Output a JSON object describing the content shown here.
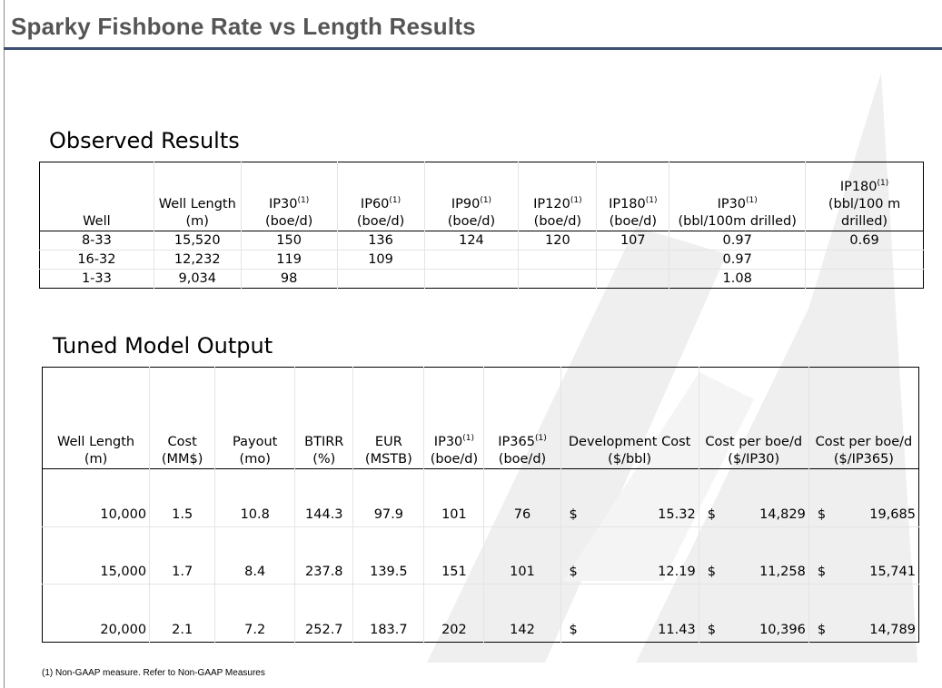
{
  "title": "Sparky Fishbone Rate vs Length Results",
  "colors": {
    "title": "#555555",
    "rule": "#3e4f72",
    "watermark": "#ececec"
  },
  "observed": {
    "heading": "Observed Results",
    "headers": [
      {
        "main": "Well",
        "sup": "",
        "unit": ""
      },
      {
        "main": "Well Length",
        "sup": "",
        "unit": "(m)"
      },
      {
        "main": "IP30",
        "sup": "(1)",
        "unit": "(boe/d)"
      },
      {
        "main": "IP60",
        "sup": "(1)",
        "unit": "(boe/d)"
      },
      {
        "main": "IP90",
        "sup": "(1)",
        "unit": "(boe/d)"
      },
      {
        "main": "IP120",
        "sup": "(1)",
        "unit": "(boe/d)"
      },
      {
        "main": "IP180",
        "sup": "(1)",
        "unit": "(boe/d)"
      },
      {
        "main": "IP30",
        "sup": "(1)",
        "unit": "(bbl/100m drilled)"
      },
      {
        "main": "IP180",
        "sup": "(1)",
        "unit": "(bbl/100 m drilled)"
      }
    ],
    "rows": [
      [
        "8-33",
        "15,520",
        "150",
        "136",
        "124",
        "120",
        "107",
        "0.97",
        "0.69"
      ],
      [
        "16-32",
        "12,232",
        "119",
        "109",
        "",
        "",
        "",
        "0.97",
        ""
      ],
      [
        "1-33",
        "9,034",
        "98",
        "",
        "",
        "",
        "",
        "1.08",
        ""
      ]
    ]
  },
  "tuned": {
    "heading": "Tuned Model Output",
    "headers": [
      {
        "main": "Well Length",
        "sup": "",
        "unit": "(m)"
      },
      {
        "main": "Cost",
        "sup": "",
        "unit": "(MM$)"
      },
      {
        "main": "Payout",
        "sup": "",
        "unit": "(mo)"
      },
      {
        "main": "BTIRR",
        "sup": "",
        "unit": "(%)"
      },
      {
        "main": "EUR",
        "sup": "",
        "unit": "(MSTB)"
      },
      {
        "main": "IP30",
        "sup": "(1)",
        "unit": "(boe/d)"
      },
      {
        "main": "IP365",
        "sup": "(1)",
        "unit": "(boe/d)"
      },
      {
        "main": "Development Cost",
        "sup": "",
        "unit": "($/bbl)"
      },
      {
        "main": "Cost per boe/d",
        "sup": "",
        "unit": "($/IP30)"
      },
      {
        "main": "Cost per boe/d",
        "sup": "",
        "unit": "($/IP365)"
      }
    ],
    "rows": [
      {
        "length": "10,000",
        "cost": "1.5",
        "payout": "10.8",
        "btirr": "144.3",
        "eur": "97.9",
        "ip30": "101",
        "ip365": "76",
        "dev_cost": "15.32",
        "cost_ip30": "14,829",
        "cost_ip365": "19,685"
      },
      {
        "length": "15,000",
        "cost": "1.7",
        "payout": "8.4",
        "btirr": "237.8",
        "eur": "139.5",
        "ip30": "151",
        "ip365": "101",
        "dev_cost": "12.19",
        "cost_ip30": "11,258",
        "cost_ip365": "15,741"
      },
      {
        "length": "20,000",
        "cost": "2.1",
        "payout": "7.2",
        "btirr": "252.7",
        "eur": "183.7",
        "ip30": "202",
        "ip365": "142",
        "dev_cost": "11.43",
        "cost_ip30": "10,396",
        "cost_ip365": "14,789"
      }
    ],
    "currency_symbol": "$"
  },
  "footnote": "(1) Non-GAAP measure.  Refer to Non-GAAP Measures"
}
